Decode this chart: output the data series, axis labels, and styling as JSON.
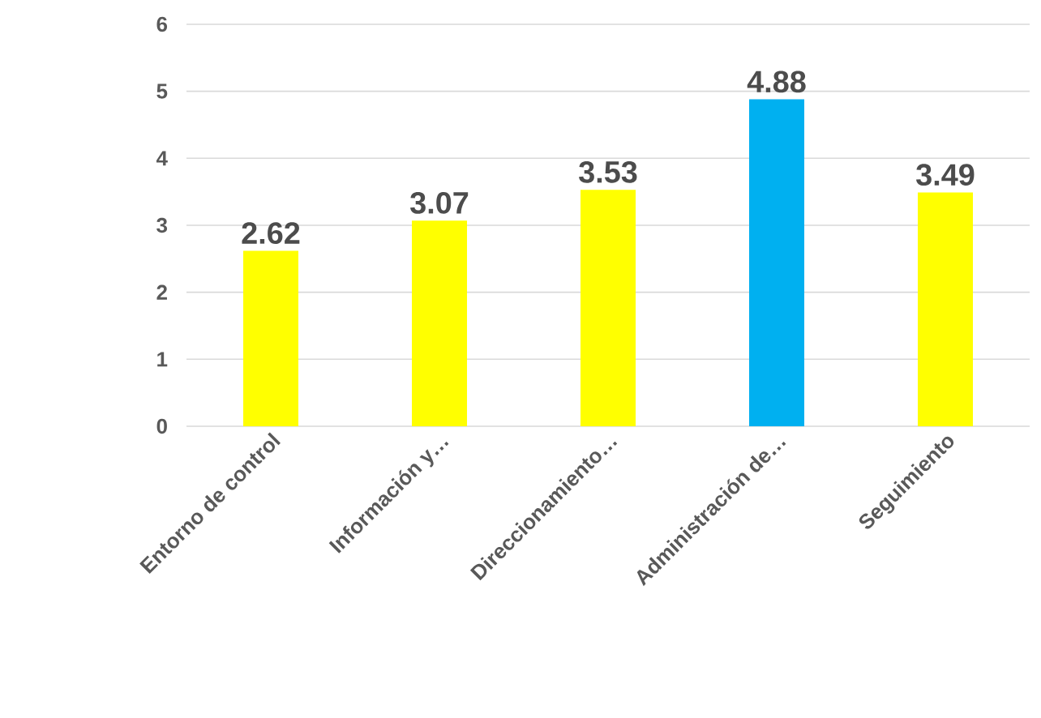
{
  "chart_data": {
    "type": "bar",
    "categories": [
      "Entorno de control",
      "Información y…",
      "Direccionamiento…",
      "Administración de…",
      "Seguimiento"
    ],
    "values": [
      2.62,
      3.07,
      3.53,
      4.88,
      3.49
    ],
    "colors": [
      "#ffff00",
      "#ffff00",
      "#ffff00",
      "#00b0f0",
      "#ffff00"
    ],
    "ylim": [
      0,
      6
    ],
    "yticks": [
      0,
      1,
      2,
      3,
      4,
      5,
      6
    ],
    "grid": "y",
    "data_labels": true
  }
}
